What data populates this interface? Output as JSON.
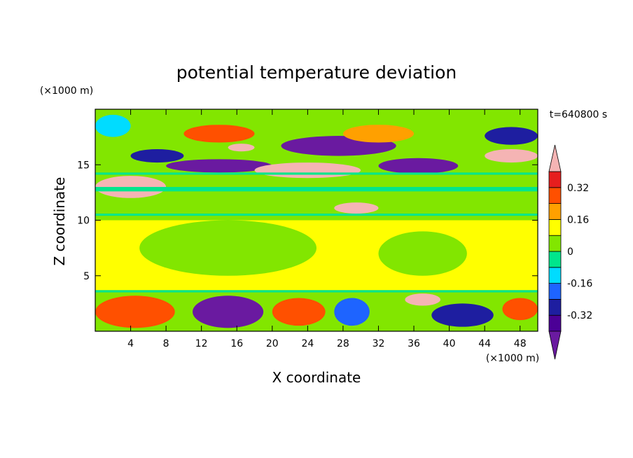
{
  "chart_data": {
    "type": "heatmap",
    "title": "potential temperature deviation",
    "xlabel": "X coordinate",
    "ylabel": "Z coordinate",
    "x_unit": "(×1000 m)",
    "y_unit": "(×1000 m)",
    "time_label": "t=640800 s",
    "xlim": [
      0,
      50
    ],
    "ylim": [
      0,
      20
    ],
    "x_ticks": [
      4,
      8,
      12,
      16,
      20,
      24,
      28,
      32,
      36,
      40,
      44,
      48
    ],
    "y_ticks": [
      5,
      10,
      15
    ],
    "colorbar": {
      "levels": [
        -0.4,
        -0.32,
        -0.24,
        -0.16,
        -0.08,
        0,
        0.08,
        0.16,
        0.24,
        0.32,
        0.4
      ],
      "tick_labels": [
        "-0.32",
        "-0.16",
        "0",
        "0.16",
        "0.32"
      ],
      "tick_values": [
        -0.32,
        -0.16,
        0,
        0.16,
        0.32
      ],
      "colors": [
        "#4b0096",
        "#1e1ea0",
        "#1e64ff",
        "#00dcff",
        "#00e68c",
        "#82e600",
        "#ffff00",
        "#ffa000",
        "#ff5000",
        "#e61e1e"
      ],
      "under_color": "#6a1aa0",
      "over_color": "#f5b4b4"
    },
    "fields": {
      "background_level": 0.02,
      "mid_level": 0.1,
      "stripe_levels": [
        {
          "z": [
            10.4,
            10.6
          ],
          "value": -0.03
        },
        {
          "z": [
            12.6,
            13.0
          ],
          "value": -0.03
        },
        {
          "z": [
            14.1,
            14.3
          ],
          "value": -0.03
        },
        {
          "z": [
            3.5,
            3.7
          ],
          "value": -0.05
        }
      ],
      "top_band": {
        "z": [
          17.0,
          20.0
        ],
        "value": 0.06
      },
      "regions": [
        {
          "x": [
            0,
            4
          ],
          "z": [
            17.5,
            19.5
          ],
          "value": -0.12
        },
        {
          "x": [
            4,
            10
          ],
          "z": [
            15.2,
            16.4
          ],
          "value": -0.3
        },
        {
          "x": [
            8,
            20
          ],
          "z": [
            14.3,
            15.5
          ],
          "value": -0.42
        },
        {
          "x": [
            10,
            18
          ],
          "z": [
            17.0,
            18.6
          ],
          "value": 0.3
        },
        {
          "x": [
            15,
            18
          ],
          "z": [
            16.2,
            16.9
          ],
          "value": 0.42
        },
        {
          "x": [
            18,
            30
          ],
          "z": [
            13.8,
            15.2
          ],
          "value": 0.45
        },
        {
          "x": [
            21,
            34
          ],
          "z": [
            15.8,
            17.6
          ],
          "value": -0.42
        },
        {
          "x": [
            28,
            36
          ],
          "z": [
            17.0,
            18.6
          ],
          "value": 0.2
        },
        {
          "x": [
            32,
            41
          ],
          "z": [
            14.2,
            15.6
          ],
          "value": -0.42
        },
        {
          "x": [
            44,
            50
          ],
          "z": [
            15.2,
            16.4
          ],
          "value": 0.45
        },
        {
          "x": [
            44,
            50
          ],
          "z": [
            16.8,
            18.4
          ],
          "value": -0.3
        },
        {
          "x": [
            0,
            8
          ],
          "z": [
            12.0,
            14.0
          ],
          "value": 0.45
        },
        {
          "x": [
            27,
            32
          ],
          "z": [
            10.6,
            11.6
          ],
          "value": 0.45
        },
        {
          "x": [
            5,
            25
          ],
          "z": [
            5.0,
            10.0
          ],
          "value": 0.02
        },
        {
          "x": [
            32,
            42
          ],
          "z": [
            5.0,
            9.0
          ],
          "value": 0.02
        },
        {
          "x": [
            0,
            9
          ],
          "z": [
            0.3,
            3.2
          ],
          "value": 0.3
        },
        {
          "x": [
            11,
            19
          ],
          "z": [
            0.3,
            3.2
          ],
          "value": -0.42
        },
        {
          "x": [
            20,
            26
          ],
          "z": [
            0.5,
            3.0
          ],
          "value": 0.3
        },
        {
          "x": [
            27,
            31
          ],
          "z": [
            0.5,
            3.0
          ],
          "value": -0.2
        },
        {
          "x": [
            35,
            39
          ],
          "z": [
            2.3,
            3.4
          ],
          "value": 0.45
        },
        {
          "x": [
            38,
            45
          ],
          "z": [
            0.4,
            2.5
          ],
          "value": -0.3
        },
        {
          "x": [
            46,
            50
          ],
          "z": [
            1.0,
            3.0
          ],
          "value": 0.3
        }
      ]
    }
  }
}
